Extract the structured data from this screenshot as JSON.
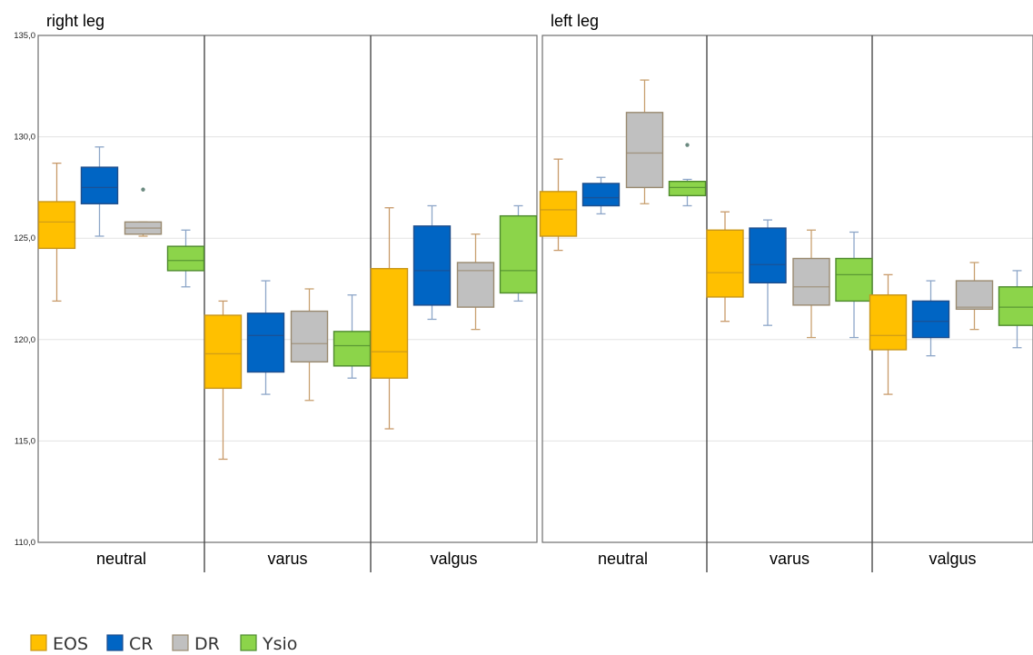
{
  "chart_data": {
    "type": "boxplot",
    "y_tick_labels": [
      "110,0",
      "115,0",
      "120,0",
      "125,0",
      "130,0",
      "135,0"
    ],
    "y_ticks": [
      110,
      115,
      120,
      125,
      130,
      135
    ],
    "ylim": [
      110,
      135
    ],
    "grid": true,
    "legend_position": "bottom-left",
    "series": [
      {
        "name": "EOS",
        "color": "#FFC000",
        "line": "#C8961A",
        "whisker": "#C89A6A"
      },
      {
        "name": "CR",
        "color": "#0065C4",
        "line": "#1F4E8C",
        "whisker": "#8DA6C8"
      },
      {
        "name": "DR",
        "color": "#C0C0C0",
        "line": "#9A8A70",
        "whisker": "#C8A070"
      },
      {
        "name": "Ysio",
        "color": "#8CD44A",
        "line": "#4E8A2E",
        "whisker": "#8DA6C8"
      }
    ],
    "panels": [
      {
        "title": "right leg",
        "categories": [
          {
            "label": "neutral",
            "boxes": [
              {
                "min": 121.9,
                "q1": 124.5,
                "median": 125.8,
                "q3": 126.8,
                "max": 128.7,
                "outliers": []
              },
              {
                "min": 125.1,
                "q1": 126.7,
                "median": 127.5,
                "q3": 128.5,
                "max": 129.5,
                "outliers": []
              },
              {
                "min": 125.1,
                "q1": 125.2,
                "median": 125.5,
                "q3": 125.8,
                "max": 125.8,
                "outliers": [
                  127.4
                ]
              },
              {
                "min": 122.6,
                "q1": 123.4,
                "median": 123.9,
                "q3": 124.6,
                "max": 125.4,
                "outliers": []
              }
            ]
          },
          {
            "label": "varus",
            "boxes": [
              {
                "min": 114.1,
                "q1": 117.6,
                "median": 119.3,
                "q3": 121.2,
                "max": 121.9,
                "outliers": []
              },
              {
                "min": 117.3,
                "q1": 118.4,
                "median": 120.2,
                "q3": 121.3,
                "max": 122.9,
                "outliers": []
              },
              {
                "min": 117.0,
                "q1": 118.9,
                "median": 119.8,
                "q3": 121.4,
                "max": 122.5,
                "outliers": []
              },
              {
                "min": 118.1,
                "q1": 118.7,
                "median": 119.7,
                "q3": 120.4,
                "max": 122.2,
                "outliers": []
              }
            ]
          },
          {
            "label": "valgus",
            "boxes": [
              {
                "min": 115.6,
                "q1": 118.1,
                "median": 119.4,
                "q3": 123.5,
                "max": 126.5,
                "outliers": []
              },
              {
                "min": 121.0,
                "q1": 121.7,
                "median": 123.4,
                "q3": 125.6,
                "max": 126.6,
                "outliers": []
              },
              {
                "min": 120.5,
                "q1": 121.6,
                "median": 123.4,
                "q3": 123.8,
                "max": 125.2,
                "outliers": []
              },
              {
                "min": 121.9,
                "q1": 122.3,
                "median": 123.4,
                "q3": 126.1,
                "max": 126.6,
                "outliers": []
              }
            ]
          }
        ]
      },
      {
        "title": "left leg",
        "categories": [
          {
            "label": "neutral",
            "boxes": [
              {
                "min": 124.4,
                "q1": 125.1,
                "median": 126.4,
                "q3": 127.3,
                "max": 128.9,
                "outliers": []
              },
              {
                "min": 126.2,
                "q1": 126.6,
                "median": 127.0,
                "q3": 127.7,
                "max": 128.0,
                "outliers": []
              },
              {
                "min": 126.7,
                "q1": 127.5,
                "median": 129.2,
                "q3": 131.2,
                "max": 132.8,
                "outliers": []
              },
              {
                "min": 126.6,
                "q1": 127.1,
                "median": 127.5,
                "q3": 127.8,
                "max": 127.9,
                "outliers": [
                  129.6
                ]
              }
            ]
          },
          {
            "label": "varus",
            "boxes": [
              {
                "min": 120.9,
                "q1": 122.1,
                "median": 123.3,
                "q3": 125.4,
                "max": 126.3,
                "outliers": []
              },
              {
                "min": 120.7,
                "q1": 122.8,
                "median": 123.7,
                "q3": 125.5,
                "max": 125.9,
                "outliers": []
              },
              {
                "min": 120.1,
                "q1": 121.7,
                "median": 122.6,
                "q3": 124.0,
                "max": 125.4,
                "outliers": []
              },
              {
                "min": 120.1,
                "q1": 121.9,
                "median": 123.2,
                "q3": 124.0,
                "max": 125.3,
                "outliers": []
              }
            ]
          },
          {
            "label": "valgus",
            "boxes": [
              {
                "min": 117.3,
                "q1": 119.5,
                "median": 120.2,
                "q3": 122.2,
                "max": 123.2,
                "outliers": []
              },
              {
                "min": 119.2,
                "q1": 120.1,
                "median": 120.9,
                "q3": 121.9,
                "max": 122.9,
                "outliers": []
              },
              {
                "min": 120.5,
                "q1": 121.5,
                "median": 121.6,
                "q3": 122.9,
                "max": 123.8,
                "outliers": []
              },
              {
                "min": 119.6,
                "q1": 120.7,
                "median": 121.6,
                "q3": 122.6,
                "max": 123.4,
                "outliers": []
              }
            ]
          }
        ]
      }
    ]
  }
}
